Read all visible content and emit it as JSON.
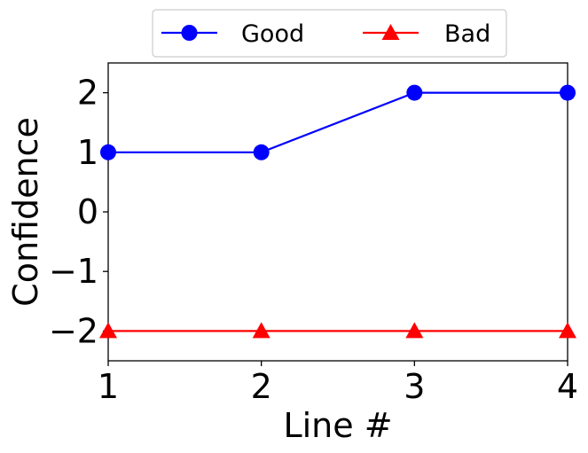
{
  "chart_data": {
    "type": "line",
    "title": "",
    "xlabel": "Line #",
    "ylabel": "Confidence",
    "x": [
      1,
      2,
      3,
      4
    ],
    "xlim": [
      1,
      4
    ],
    "ylim": [
      -2.5,
      2.5
    ],
    "xticks": [
      "1",
      "2",
      "3",
      "4"
    ],
    "yticks": [
      "2",
      "1",
      "0",
      "−1",
      "−2"
    ],
    "ytick_values": [
      2,
      1,
      0,
      -1,
      -2
    ],
    "grid": false,
    "legend_position": "top-center-outside",
    "series": [
      {
        "name": "Good",
        "values": [
          1,
          1,
          2,
          2
        ],
        "color": "#0000ff",
        "marker": "circle"
      },
      {
        "name": "Bad",
        "values": [
          -2,
          -2,
          -2,
          -2
        ],
        "color": "#ff0000",
        "marker": "triangle"
      }
    ]
  }
}
